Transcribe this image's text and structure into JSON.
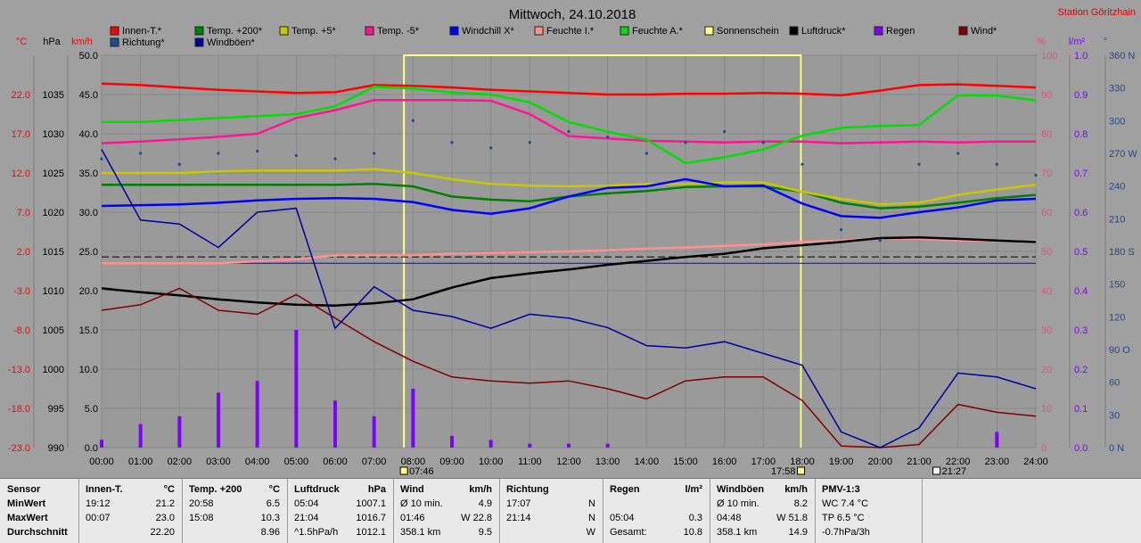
{
  "title": "Mittwoch, 24.10.2018",
  "station": "Station Göritzhain",
  "units": {
    "temp": "°C",
    "hpa": "hPa",
    "kmh": "km/h",
    "pct": "%",
    "rain": "l/m²",
    "deg": "°"
  },
  "legend": [
    {
      "label": "Innen-T.*",
      "color": "#ff0000"
    },
    {
      "label": "Temp. +200*",
      "color": "#008000"
    },
    {
      "label": "Temp. +5*",
      "color": "#c8c800"
    },
    {
      "label": "Temp. -5*",
      "color": "#ff1493"
    },
    {
      "label": "Windchill X*",
      "color": "#0000ff"
    },
    {
      "label": "Feuchte I.*",
      "color": "#ff9090"
    },
    {
      "label": "Feuchte A.*",
      "color": "#00e000"
    },
    {
      "label": "Sonnenschein",
      "color": "#ffff80"
    },
    {
      "label": "Luftdruck*",
      "color": "#000000"
    },
    {
      "label": "Regen",
      "color": "#8000ff"
    },
    {
      "label": "Wind*",
      "color": "#800000"
    },
    {
      "label": "Richtung*",
      "color": "#1e4a90"
    },
    {
      "label": "Windböen*",
      "color": "#0000a0"
    }
  ],
  "axes": {
    "temp": [
      "22.0",
      "17.0",
      "12.0",
      "7.0",
      "2.0",
      "-3.0",
      "-8.0",
      "-13.0",
      "-18.0",
      "-23.0"
    ],
    "hpa": [
      "1035",
      "1030",
      "1025",
      "1020",
      "1015",
      "1010",
      "1005",
      "1000",
      "995",
      "990"
    ],
    "kmh": [
      "50.0",
      "45.0",
      "40.0",
      "35.0",
      "30.0",
      "25.0",
      "20.0",
      "15.0",
      "10.0",
      "5.0",
      "0.0"
    ],
    "pct": [
      "100",
      "90",
      "80",
      "70",
      "60",
      "50",
      "40",
      "30",
      "20",
      "10",
      "0"
    ],
    "rain": [
      "1.0",
      "0.9",
      "0.8",
      "0.7",
      "0.6",
      "0.5",
      "0.4",
      "0.3",
      "0.2",
      "0.1",
      "0.0"
    ],
    "dir": [
      "360 N",
      "330",
      "300",
      "270 W",
      "240",
      "210",
      "180 S",
      "150",
      "120",
      "90 O",
      "60",
      "30",
      "0 N"
    ],
    "time": [
      "00:00",
      "01:00",
      "02:00",
      "03:00",
      "04:00",
      "05:00",
      "06:00",
      "07:00",
      "08:00",
      "09:00",
      "10:00",
      "11:00",
      "12:00",
      "13:00",
      "14:00",
      "15:00",
      "16:00",
      "17:00",
      "18:00",
      "19:00",
      "20:00",
      "21:00",
      "22:00",
      "23:00",
      "24:00"
    ]
  },
  "markers": {
    "sunrise": "07:46",
    "sunset": "17:58",
    "moon": "21:27"
  },
  "chart_data": {
    "type": "line",
    "x": [
      "00:00",
      "01:00",
      "02:00",
      "03:00",
      "04:00",
      "05:00",
      "06:00",
      "07:00",
      "08:00",
      "09:00",
      "10:00",
      "11:00",
      "12:00",
      "13:00",
      "14:00",
      "15:00",
      "16:00",
      "17:00",
      "18:00",
      "19:00",
      "20:00",
      "21:00",
      "22:00",
      "23:00",
      "24:00"
    ],
    "series": [
      {
        "name": "Innen-T.*",
        "axis": "kmh",
        "color": "#ff0000",
        "values": [
          46.4,
          46.2,
          45.9,
          45.6,
          45.4,
          45.2,
          45.3,
          46.2,
          46.1,
          45.9,
          45.6,
          45.4,
          45.2,
          45.0,
          45.0,
          45.1,
          45.1,
          45.2,
          45.1,
          44.9,
          45.5,
          46.2,
          46.3,
          46.1,
          45.9
        ]
      },
      {
        "name": "Temp. +200*",
        "axis": "kmh",
        "color": "#008000",
        "values": [
          33.5,
          33.5,
          33.5,
          33.5,
          33.5,
          33.5,
          33.5,
          33.6,
          33.3,
          32.0,
          31.6,
          31.4,
          32.0,
          32.4,
          32.7,
          33.2,
          33.3,
          33.3,
          32.6,
          31.2,
          30.5,
          30.7,
          31.2,
          31.8,
          32.2
        ]
      },
      {
        "name": "Temp. +5*",
        "axis": "kmh",
        "color": "#c8c800",
        "values": [
          35.0,
          35.0,
          35.0,
          35.2,
          35.3,
          35.3,
          35.3,
          35.5,
          35.0,
          34.2,
          33.6,
          33.4,
          33.3,
          33.4,
          33.6,
          33.6,
          33.8,
          33.8,
          32.6,
          31.7,
          31.0,
          31.2,
          32.2,
          32.9,
          33.5
        ]
      },
      {
        "name": "Temp. -5*",
        "axis": "kmh",
        "color": "#ff1493",
        "values": [
          38.8,
          39.0,
          39.3,
          39.6,
          40.0,
          42.0,
          43.0,
          44.3,
          44.3,
          44.3,
          44.2,
          42.5,
          39.7,
          39.4,
          39.1,
          39.0,
          38.9,
          39.0,
          39.0,
          38.8,
          38.9,
          39.0,
          38.9,
          39.0,
          39.0
        ]
      },
      {
        "name": "Windchill X*",
        "axis": "kmh",
        "color": "#0000ff",
        "values": [
          30.8,
          30.9,
          31.0,
          31.2,
          31.5,
          31.7,
          31.8,
          31.7,
          31.3,
          30.3,
          29.8,
          30.5,
          32.0,
          33.1,
          33.3,
          34.2,
          33.3,
          33.4,
          31.1,
          29.5,
          29.3,
          30.0,
          30.6,
          31.5,
          31.7
        ]
      },
      {
        "name": "Feuchte I.*",
        "axis": "pct",
        "color": "#ff9090",
        "values": [
          47,
          47,
          47,
          47,
          47.5,
          48,
          49,
          49,
          49,
          49.4,
          49.6,
          49.8,
          50,
          50.3,
          50.7,
          51,
          51.4,
          51.8,
          52.4,
          52.8,
          53.4,
          53.2,
          52.8,
          52.7,
          52.7
        ]
      },
      {
        "name": "Feuchte A.*",
        "axis": "pct",
        "color": "#00e000",
        "values": [
          83,
          83,
          83.5,
          84,
          84.5,
          85,
          87,
          92,
          91.5,
          90.5,
          90,
          88,
          83,
          80.5,
          78.5,
          72.5,
          74,
          76,
          79.5,
          81.5,
          82,
          82.2,
          89.8,
          89.7,
          88.5
        ]
      },
      {
        "name": "Luftdruck*",
        "axis": "hpa",
        "color": "#000000",
        "values": [
          1010.3,
          1009.8,
          1009.4,
          1008.9,
          1008.5,
          1008.2,
          1008.1,
          1008.4,
          1008.9,
          1010.4,
          1011.6,
          1012.2,
          1012.7,
          1013.3,
          1013.8,
          1014.3,
          1014.7,
          1015.4,
          1015.8,
          1016.2,
          1016.7,
          1016.8,
          1016.6,
          1016.4,
          1016.2
        ]
      },
      {
        "name": "Wind*",
        "axis": "kmh",
        "color": "#800000",
        "values": [
          17.5,
          18.2,
          20.3,
          17.5,
          17.0,
          19.5,
          16.5,
          13.5,
          11.0,
          9.0,
          8.5,
          8.2,
          8.5,
          7.5,
          6.2,
          8.5,
          9.0,
          9.0,
          6.0,
          0.2,
          0.0,
          0.4,
          5.5,
          4.5,
          4.0
        ]
      },
      {
        "name": "Windböen*",
        "axis": "kmh",
        "color": "#0000a0",
        "values": [
          38.0,
          29.0,
          28.5,
          25.5,
          30.0,
          30.5,
          15.2,
          20.5,
          17.5,
          16.7,
          15.2,
          17.0,
          16.5,
          15.3,
          13.0,
          12.7,
          13.5,
          12.0,
          10.5,
          2.0,
          0.0,
          2.5,
          9.5,
          9.0,
          7.5
        ]
      },
      {
        "name": "Richtung*",
        "axis": "dir",
        "color": "#1e4a90",
        "values": [
          265,
          270,
          260,
          270,
          272,
          268,
          265,
          270,
          300,
          280,
          275,
          280,
          290,
          285,
          270,
          280,
          290,
          280,
          260,
          200,
          190,
          260,
          270,
          260,
          250
        ]
      },
      {
        "name": "Regen",
        "axis": "rain",
        "color": "#8000ff",
        "type": "bar",
        "values": [
          0.02,
          0.06,
          0.08,
          0.14,
          0.17,
          0.3,
          0.12,
          0.08,
          0.15,
          0.03,
          0.02,
          0.01,
          0.01,
          0.01,
          0.0,
          0.0,
          0.0,
          0.0,
          0.0,
          0.0,
          0.0,
          0.0,
          0.0,
          0.04,
          0.0
        ]
      }
    ],
    "sunshine": {
      "start": "07:46",
      "end": "17:58"
    },
    "reference_lines": [
      {
        "axis": "kmh",
        "value": 24.3,
        "style": "dashed"
      },
      {
        "axis": "kmh",
        "value": 23.5,
        "color": "#0000ff"
      }
    ],
    "ylim": {
      "temp": [
        -23,
        27
      ],
      "hpa": [
        990,
        1040
      ],
      "kmh": [
        0,
        50
      ],
      "pct": [
        0,
        100
      ],
      "rain": [
        0,
        1
      ],
      "dir": [
        0,
        360
      ]
    },
    "grid": true,
    "legend_position": "top"
  },
  "stats": [
    {
      "header": "Sensor",
      "rows": [
        "MinWert",
        "MaxWert",
        "Durchschnitt"
      ]
    },
    {
      "header": "Innen-T.",
      "unit": "°C",
      "rows": [
        [
          "19:12",
          "21.2"
        ],
        [
          "00:07",
          "23.0"
        ],
        [
          "",
          "22.20"
        ]
      ]
    },
    {
      "header": "Temp. +200",
      "unit": "°C",
      "rows": [
        [
          "20:58",
          "6.5"
        ],
        [
          "15:08",
          "10.3"
        ],
        [
          "",
          "8.96"
        ]
      ]
    },
    {
      "header": "Luftdruck",
      "unit": "hPa",
      "rows": [
        [
          "05:04",
          "1007.1"
        ],
        [
          "21:04",
          "1016.7"
        ],
        [
          "^1.5hPa/h",
          "1012.1"
        ]
      ]
    },
    {
      "header": "Wind",
      "unit": "km/h",
      "rows": [
        [
          "Ø 10 min.",
          "4.9"
        ],
        [
          "01:46",
          "W 22.8"
        ],
        [
          "358.1 km",
          "9.5"
        ]
      ]
    },
    {
      "header": "Richtung",
      "unit": "",
      "rows": [
        [
          "17:07",
          "N"
        ],
        [
          "21:14",
          "N"
        ],
        [
          "",
          "W"
        ]
      ]
    },
    {
      "header": "Regen",
      "unit": "l/m²",
      "rows": [
        [
          "",
          ""
        ],
        [
          "05:04",
          "0.3"
        ],
        [
          "Gesamt:",
          "10.8"
        ]
      ]
    },
    {
      "header": "Windböen",
      "unit": "km/h",
      "rows": [
        [
          "Ø 10 min.",
          "8.2"
        ],
        [
          "04:48",
          "W 51.8"
        ],
        [
          "358.1 km",
          "14.9"
        ]
      ]
    },
    {
      "header": "PMV-1:3",
      "unit": "",
      "rows": [
        [
          "WC 7.4 °C",
          ""
        ],
        [
          "TP 6.5 °C",
          ""
        ],
        [
          "-0.7hPa/3h",
          ""
        ]
      ]
    }
  ]
}
